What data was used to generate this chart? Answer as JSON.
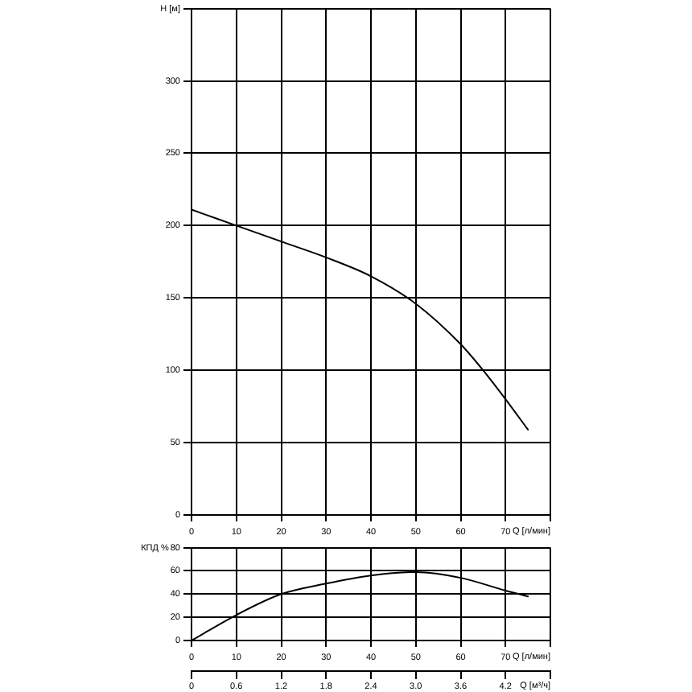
{
  "chart_data": [
    {
      "type": "line",
      "ylabel": "H [м]",
      "xlabel": "Q [л/мин]",
      "x": [
        0,
        10,
        20,
        30,
        40,
        50,
        60,
        65,
        70,
        75
      ],
      "values": [
        211,
        200,
        189,
        178,
        165,
        146,
        118,
        100,
        80,
        59
      ],
      "color": "#000000",
      "xlim": [
        0,
        80
      ],
      "xticks": [
        0,
        10,
        20,
        30,
        40,
        50,
        60,
        70,
        {
          "value": 80,
          "label": null
        }
      ],
      "ylim": [
        0,
        350
      ],
      "yticks": [
        0,
        50,
        100,
        150,
        200,
        250,
        300,
        {
          "value": 350,
          "label": null
        }
      ],
      "grid": true,
      "marker": "none"
    },
    {
      "type": "line",
      "ylabel": "КПД %",
      "xlabel": "Q [л/мин]",
      "x2label": "Q [м³/ч]",
      "x": [
        0,
        10,
        20,
        30,
        40,
        50,
        60,
        70,
        75
      ],
      "values": [
        0,
        22,
        40,
        49,
        56,
        59,
        54,
        43,
        38
      ],
      "color": "#000000",
      "xlim": [
        0,
        80
      ],
      "xticks": [
        0,
        10,
        20,
        30,
        40,
        50,
        60,
        70,
        {
          "value": 80,
          "label": null
        }
      ],
      "x2lim": [
        0,
        4.8
      ],
      "x2ticks": [
        0,
        0.6,
        1.2,
        1.8,
        2.4,
        {
          "value": 3,
          "label": "3.0"
        },
        3.6,
        4.2,
        {
          "value": 4.8,
          "label": null
        }
      ],
      "ylim": [
        0,
        80
      ],
      "yticks": [
        0,
        20,
        40,
        60,
        80
      ],
      "grid": true,
      "marker": "none"
    }
  ]
}
